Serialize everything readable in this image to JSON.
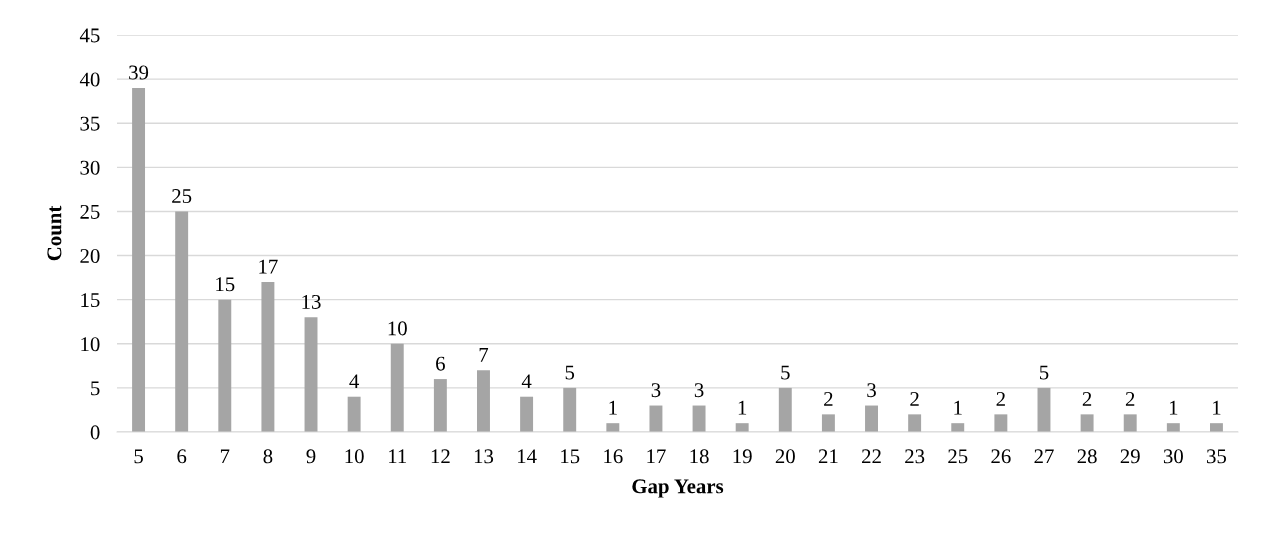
{
  "chart_data": {
    "type": "bar",
    "xlabel": "Gap Years",
    "ylabel": "Count",
    "categories": [
      "5",
      "6",
      "7",
      "8",
      "9",
      "10",
      "11",
      "12",
      "13",
      "14",
      "15",
      "16",
      "17",
      "18",
      "19",
      "20",
      "21",
      "22",
      "23",
      "25",
      "26",
      "27",
      "28",
      "29",
      "30",
      "35"
    ],
    "values": [
      39,
      25,
      15,
      17,
      13,
      4,
      10,
      6,
      7,
      4,
      5,
      1,
      3,
      3,
      1,
      5,
      2,
      3,
      2,
      1,
      2,
      5,
      2,
      2,
      1,
      1
    ],
    "color": "#a5a5a5",
    "ylim": [
      0,
      45
    ],
    "yticks": [
      0,
      5,
      10,
      15,
      20,
      25,
      30,
      35,
      40,
      45
    ],
    "grid": "y",
    "data_labels": true
  }
}
